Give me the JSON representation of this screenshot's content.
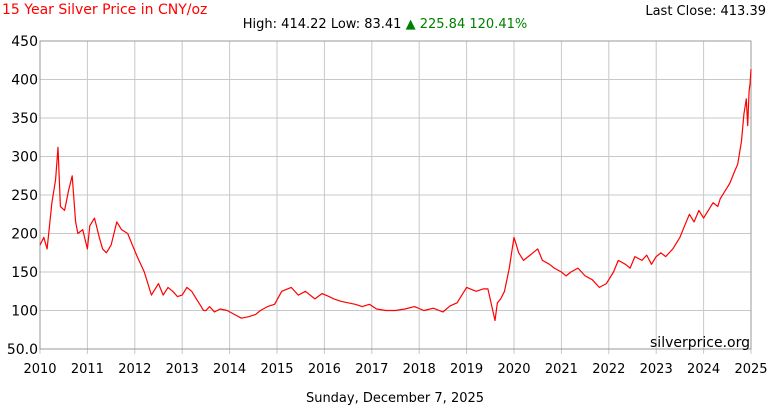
{
  "header": {
    "title": "15 Year Silver Price in CNY/oz",
    "last_close_label": "Last Close:",
    "last_close_value": "413.39",
    "high_label": "High:",
    "high_value": "414.22",
    "low_label": "Low:",
    "low_value": "83.41",
    "change_arrow": "▲",
    "change_value": "225.84",
    "change_percent": "120.41%"
  },
  "footer": {
    "date": "Sunday, December 7, 2025",
    "watermark": "silverprice.org"
  },
  "colors": {
    "line": "#ff0000",
    "grid": "#c8c8c8",
    "up": "#008000",
    "title": "#ff0000"
  },
  "chart_data": {
    "type": "line",
    "title": "15 Year Silver Price in CNY/oz",
    "xlabel": "",
    "ylabel": "",
    "xlim": [
      2010,
      2025
    ],
    "ylim": [
      50,
      450
    ],
    "yticks": [
      "50.0",
      "100",
      "150",
      "200",
      "250",
      "300",
      "350",
      "400",
      "450"
    ],
    "xticks": [
      "2010",
      "2011",
      "2012",
      "2013",
      "2014",
      "2015",
      "2016",
      "2017",
      "2018",
      "2019",
      "2020",
      "2021",
      "2022",
      "2023",
      "2024",
      "2025"
    ],
    "grid": true,
    "series": [
      {
        "color": "#ff0000",
        "x": [
          2010.0,
          2010.08,
          2010.15,
          2010.25,
          2010.33,
          2010.38,
          2010.43,
          2010.52,
          2010.6,
          2010.68,
          2010.75,
          2010.8,
          2010.9,
          2011.0,
          2011.05,
          2011.15,
          2011.25,
          2011.32,
          2011.4,
          2011.5,
          2011.62,
          2011.72,
          2011.85,
          2011.95,
          2012.05,
          2012.2,
          2012.35,
          2012.5,
          2012.6,
          2012.7,
          2012.8,
          2012.9,
          2013.0,
          2013.1,
          2013.2,
          2013.3,
          2013.4,
          2013.45,
          2013.5,
          2013.58,
          2013.68,
          2013.8,
          2013.95,
          2014.1,
          2014.25,
          2014.4,
          2014.55,
          2014.65,
          2014.8,
          2014.95,
          2015.1,
          2015.3,
          2015.45,
          2015.6,
          2015.8,
          2015.95,
          2016.1,
          2016.2,
          2016.35,
          2016.5,
          2016.65,
          2016.8,
          2016.95,
          2017.1,
          2017.3,
          2017.5,
          2017.7,
          2017.9,
          2018.1,
          2018.3,
          2018.5,
          2018.65,
          2018.8,
          2019.0,
          2019.2,
          2019.35,
          2019.45,
          2019.6,
          2019.65,
          2019.72,
          2019.8,
          2019.9,
          2019.95,
          2020.0,
          2020.05,
          2020.1,
          2020.2,
          2020.3,
          2020.4,
          2020.5,
          2020.6,
          2020.75,
          2020.85,
          2021.0,
          2021.1,
          2021.2,
          2021.35,
          2021.5,
          2021.65,
          2021.8,
          2021.95,
          2022.1,
          2022.2,
          2022.35,
          2022.45,
          2022.55,
          2022.7,
          2022.8,
          2022.9,
          2023.0,
          2023.1,
          2023.2,
          2023.35,
          2023.5,
          2023.6,
          2023.7,
          2023.8,
          2023.9,
          2024.0,
          2024.1,
          2024.2,
          2024.3,
          2024.35,
          2024.45,
          2024.55,
          2024.65,
          2024.72,
          2024.8,
          2024.85,
          2024.9,
          2024.93,
          2024.96,
          2024.98,
          2025.0
        ],
        "y": [
          185,
          195,
          180,
          240,
          270,
          312,
          235,
          230,
          255,
          275,
          215,
          200,
          205,
          180,
          210,
          220,
          195,
          180,
          175,
          185,
          215,
          205,
          200,
          185,
          170,
          150,
          120,
          135,
          120,
          130,
          125,
          118,
          120,
          130,
          125,
          115,
          105,
          100,
          100,
          105,
          98,
          102,
          100,
          95,
          90,
          92,
          95,
          100,
          105,
          108,
          125,
          130,
          120,
          125,
          115,
          122,
          118,
          115,
          112,
          110,
          108,
          105,
          108,
          102,
          100,
          100,
          102,
          105,
          100,
          103,
          98,
          106,
          110,
          130,
          125,
          128,
          128,
          87,
          110,
          115,
          125,
          155,
          175,
          195,
          185,
          175,
          165,
          170,
          175,
          180,
          165,
          160,
          155,
          150,
          145,
          150,
          155,
          145,
          140,
          130,
          135,
          150,
          165,
          160,
          155,
          170,
          165,
          172,
          160,
          170,
          175,
          170,
          180,
          195,
          210,
          225,
          215,
          230,
          220,
          230,
          240,
          235,
          245,
          255,
          265,
          280,
          290,
          320,
          355,
          375,
          340,
          385,
          395,
          413.39
        ]
      }
    ]
  }
}
